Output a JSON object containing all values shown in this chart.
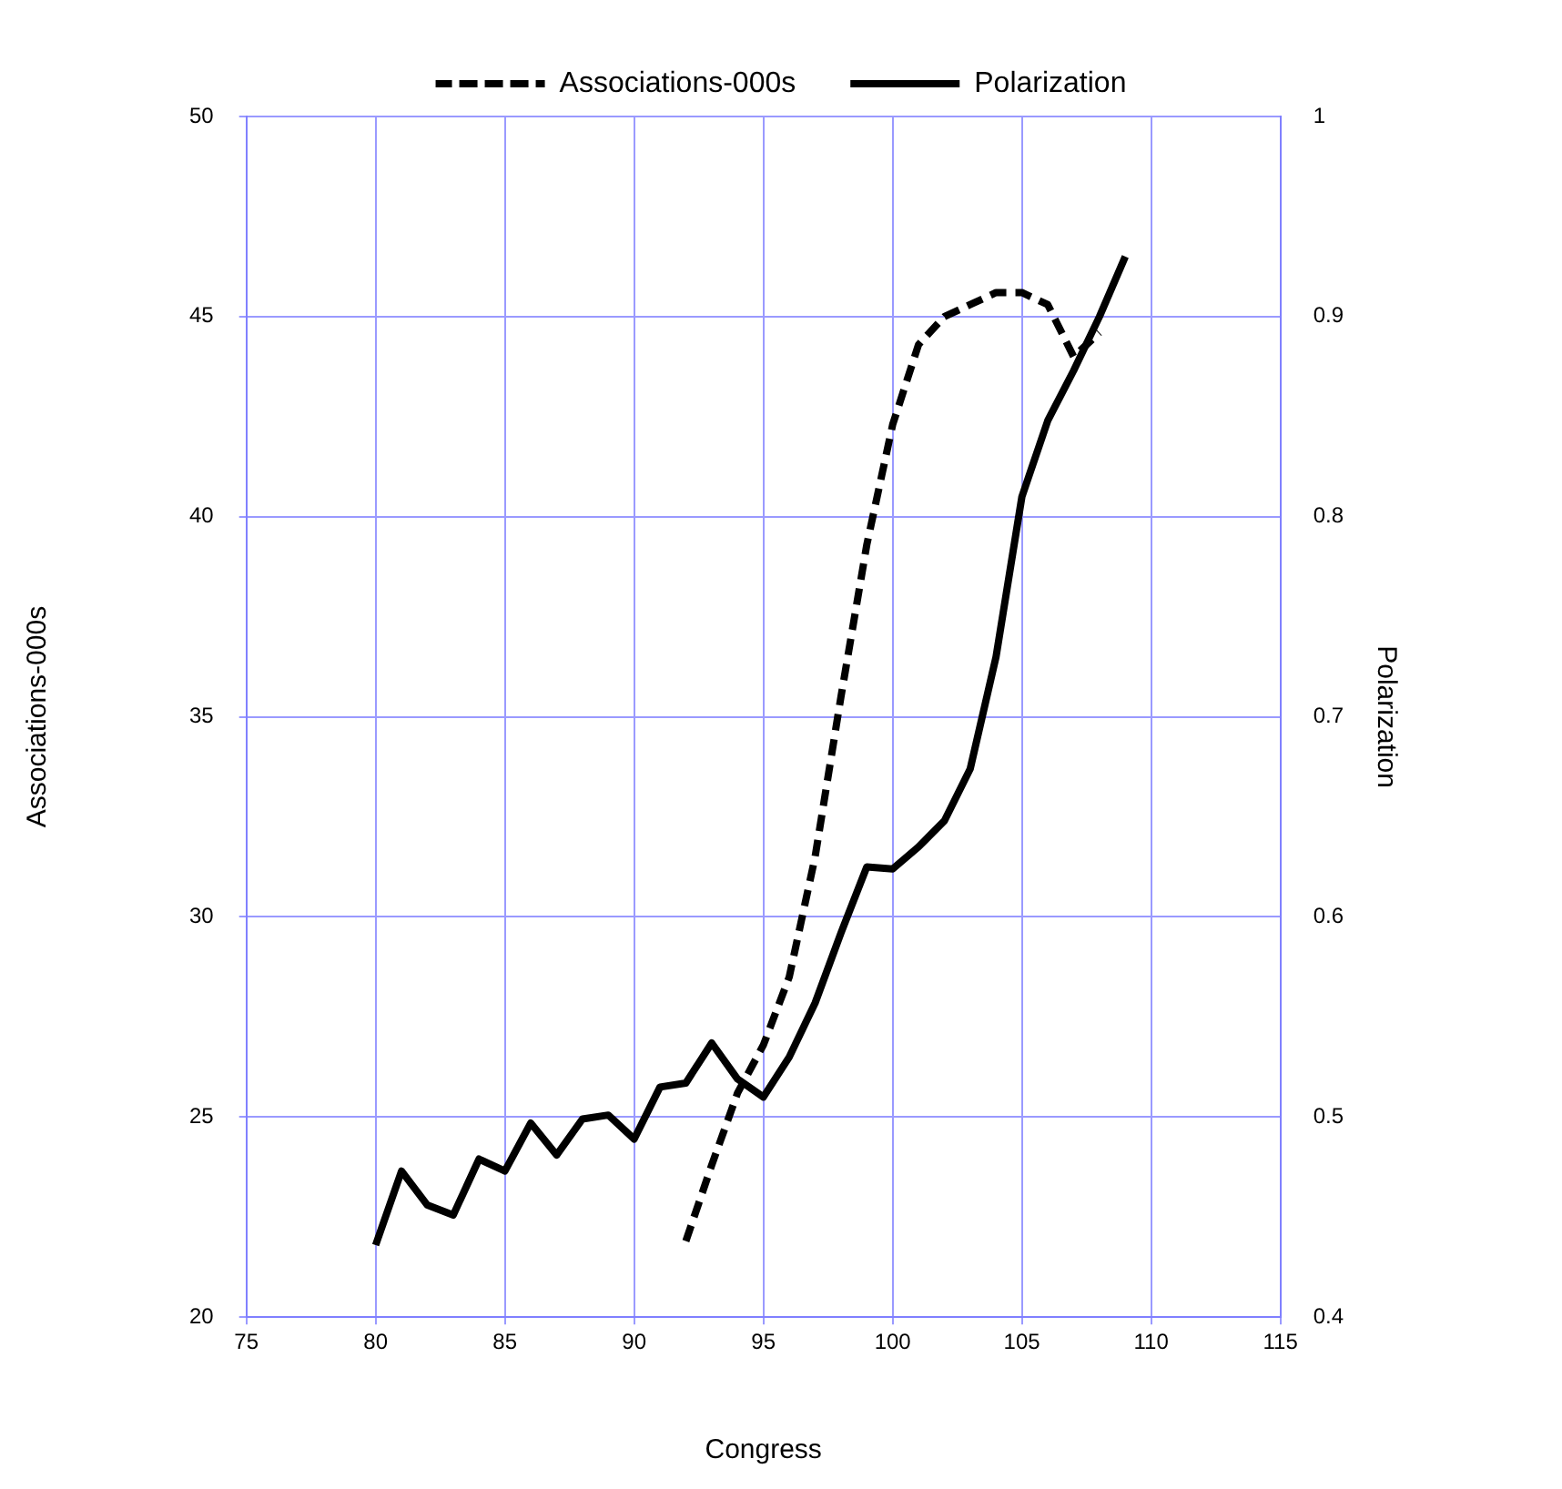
{
  "chart_data": {
    "type": "line",
    "xlabel": "Congress",
    "ylabel": "Associations-000s",
    "y2label": "Polarization",
    "xlim": [
      75,
      115
    ],
    "xticks": [
      75,
      80,
      85,
      90,
      95,
      100,
      105,
      110,
      115
    ],
    "ylim": [
      20,
      50
    ],
    "yticks": [
      20,
      25,
      30,
      35,
      40,
      45,
      50
    ],
    "y2lim": [
      0.4,
      1
    ],
    "y2ticks": [
      0.4,
      0.5,
      0.6,
      0.7,
      0.8,
      0.9,
      1
    ],
    "grid": true,
    "legend": "top",
    "marker": "none",
    "series": [
      {
        "name": "Associations-000s",
        "color": "#000000",
        "line_style": "dashed",
        "x": [
          92,
          93,
          94,
          95,
          96,
          97,
          98,
          99,
          100,
          101,
          102,
          103,
          104,
          105,
          106,
          107,
          108
        ],
        "values": [
          21.9,
          23.8,
          25.6,
          26.8,
          28.5,
          31.5,
          35.5,
          39.3,
          42.3,
          44.3,
          45.0,
          45.3,
          45.6,
          45.6,
          45.3,
          44.0,
          44.6
        ]
      },
      {
        "name": "Polarization",
        "color": "#000000",
        "line_style": "solid",
        "axis": "y2",
        "x": [
          80,
          81,
          82,
          83,
          84,
          85,
          86,
          87,
          88,
          89,
          90,
          91,
          92,
          93,
          94,
          95,
          96,
          97,
          98,
          99,
          100,
          101,
          102,
          103,
          104,
          105,
          106,
          107,
          108,
          109
        ],
        "values": [
          0.436,
          0.473,
          0.456,
          0.451,
          0.479,
          0.473,
          0.497,
          0.481,
          0.499,
          0.501,
          0.489,
          0.515,
          0.517,
          0.537,
          0.519,
          0.51,
          0.53,
          0.557,
          0.592,
          0.625,
          0.624,
          0.635,
          0.648,
          0.674,
          0.73,
          0.81,
          0.848,
          0.873,
          0.9,
          0.93
        ]
      }
    ]
  }
}
